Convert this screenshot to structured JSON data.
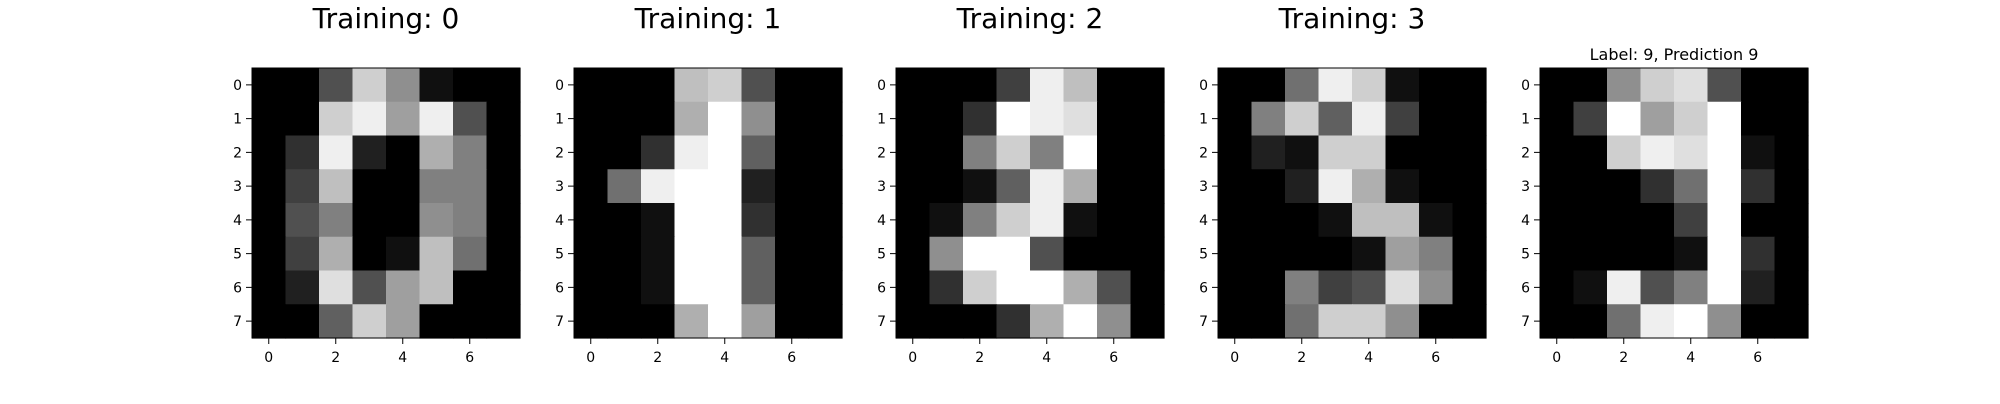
{
  "chart_data": [
    {
      "type": "heatmap",
      "title": "Training: 0",
      "colormap": "gray",
      "vmin": 0,
      "vmax": 16,
      "xticks": [
        0,
        2,
        4,
        6
      ],
      "yticks": [
        0,
        1,
        2,
        3,
        4,
        5,
        6,
        7
      ],
      "values": [
        [
          0,
          0,
          5,
          13,
          9,
          1,
          0,
          0
        ],
        [
          0,
          0,
          13,
          15,
          10,
          15,
          5,
          0
        ],
        [
          0,
          3,
          15,
          2,
          0,
          11,
          8,
          0
        ],
        [
          0,
          4,
          12,
          0,
          0,
          8,
          8,
          0
        ],
        [
          0,
          5,
          8,
          0,
          0,
          9,
          8,
          0
        ],
        [
          0,
          4,
          11,
          0,
          1,
          12,
          7,
          0
        ],
        [
          0,
          2,
          14,
          5,
          10,
          12,
          0,
          0
        ],
        [
          0,
          0,
          6,
          13,
          10,
          0,
          0,
          0
        ]
      ]
    },
    {
      "type": "heatmap",
      "title": "Training: 1",
      "colormap": "gray",
      "vmin": 0,
      "vmax": 16,
      "xticks": [
        0,
        2,
        4,
        6
      ],
      "yticks": [
        0,
        1,
        2,
        3,
        4,
        5,
        6,
        7
      ],
      "values": [
        [
          0,
          0,
          0,
          12,
          13,
          5,
          0,
          0
        ],
        [
          0,
          0,
          0,
          11,
          16,
          9,
          0,
          0
        ],
        [
          0,
          0,
          3,
          15,
          16,
          6,
          0,
          0
        ],
        [
          0,
          7,
          15,
          16,
          16,
          2,
          0,
          0
        ],
        [
          0,
          0,
          1,
          16,
          16,
          3,
          0,
          0
        ],
        [
          0,
          0,
          1,
          16,
          16,
          6,
          0,
          0
        ],
        [
          0,
          0,
          1,
          16,
          16,
          6,
          0,
          0
        ],
        [
          0,
          0,
          0,
          11,
          16,
          10,
          0,
          0
        ]
      ]
    },
    {
      "type": "heatmap",
      "title": "Training: 2",
      "colormap": "gray",
      "vmin": 0,
      "vmax": 16,
      "xticks": [
        0,
        2,
        4,
        6
      ],
      "yticks": [
        0,
        1,
        2,
        3,
        4,
        5,
        6,
        7
      ],
      "values": [
        [
          0,
          0,
          0,
          4,
          15,
          12,
          0,
          0
        ],
        [
          0,
          0,
          3,
          16,
          15,
          14,
          0,
          0
        ],
        [
          0,
          0,
          8,
          13,
          8,
          16,
          0,
          0
        ],
        [
          0,
          0,
          1,
          6,
          15,
          11,
          0,
          0
        ],
        [
          0,
          1,
          8,
          13,
          15,
          1,
          0,
          0
        ],
        [
          0,
          9,
          16,
          16,
          5,
          0,
          0,
          0
        ],
        [
          0,
          3,
          13,
          16,
          16,
          11,
          5,
          0
        ],
        [
          0,
          0,
          0,
          3,
          11,
          16,
          9,
          0
        ]
      ]
    },
    {
      "type": "heatmap",
      "title": "Training: 3",
      "colormap": "gray",
      "vmin": 0,
      "vmax": 16,
      "xticks": [
        0,
        2,
        4,
        6
      ],
      "yticks": [
        0,
        1,
        2,
        3,
        4,
        5,
        6,
        7
      ],
      "values": [
        [
          0,
          0,
          7,
          15,
          13,
          1,
          0,
          0
        ],
        [
          0,
          8,
          13,
          6,
          15,
          4,
          0,
          0
        ],
        [
          0,
          2,
          1,
          13,
          13,
          0,
          0,
          0
        ],
        [
          0,
          0,
          2,
          15,
          11,
          1,
          0,
          0
        ],
        [
          0,
          0,
          0,
          1,
          12,
          12,
          1,
          0
        ],
        [
          0,
          0,
          0,
          0,
          1,
          10,
          8,
          0
        ],
        [
          0,
          0,
          8,
          4,
          5,
          14,
          9,
          0
        ],
        [
          0,
          0,
          7,
          13,
          13,
          9,
          0,
          0
        ]
      ]
    },
    {
      "type": "heatmap",
      "title": "Label: 9, Prediction 9",
      "colormap": "gray",
      "vmin": 0,
      "vmax": 16,
      "xticks": [
        0,
        2,
        4,
        6
      ],
      "yticks": [
        0,
        1,
        2,
        3,
        4,
        5,
        6,
        7
      ],
      "values": [
        [
          0,
          0,
          9,
          13,
          14,
          5,
          0,
          0
        ],
        [
          0,
          4,
          16,
          10,
          13,
          16,
          0,
          0
        ],
        [
          0,
          0,
          13,
          15,
          14,
          16,
          1,
          0
        ],
        [
          0,
          0,
          0,
          3,
          7,
          16,
          3,
          0
        ],
        [
          0,
          0,
          0,
          0,
          4,
          16,
          0,
          0
        ],
        [
          0,
          0,
          0,
          0,
          1,
          16,
          3,
          0
        ],
        [
          0,
          1,
          15,
          5,
          8,
          16,
          2,
          0
        ],
        [
          0,
          0,
          7,
          15,
          16,
          9,
          0,
          0
        ]
      ]
    }
  ]
}
